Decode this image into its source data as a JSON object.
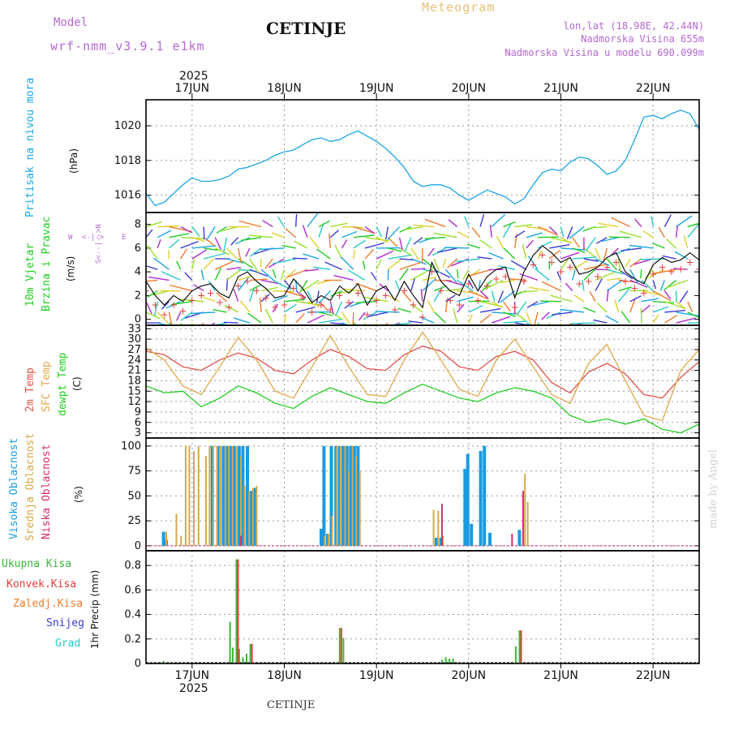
{
  "header": {
    "model_label": "Model",
    "model_name": "wrf-nmm_v3.9.1  e1km",
    "station": "CETINJE",
    "product": "Meteogram",
    "lonlat": "lon,lat (18.98E, 42.44N)",
    "elevation": "Nadmorska Visina 655m",
    "model_elevation": "Nadmorska Visina u modelu 690.099m",
    "footer_station": "CETINJE",
    "credit": "made by Angel"
  },
  "colors": {
    "pressure": "#1aa6e6",
    "temp2m": "#e0514a",
    "sfc": "#e0a84a",
    "dewpt": "#22cc22",
    "high_cloud": "#1a9be0",
    "mid_cloud": "#d4a94a",
    "low_cloud": "#d22f6a",
    "total_precip": "#38b838",
    "convective": "#e63c3c",
    "frozen": "#f07a2a",
    "snow": "#3a3ad6",
    "graupel": "#2ac8c8",
    "grid": "#999999"
  },
  "time_axis": {
    "year": "2025",
    "days": [
      "17JUN",
      "18JUN",
      "19JUN",
      "20JUN",
      "21JUN",
      "22JUN"
    ]
  },
  "chart_data": [
    {
      "type": "line",
      "title": "Pritisak na nivou mora",
      "ylabel": "(hPa)",
      "ylim": [
        1015.0,
        1021.5
      ],
      "yticks": [
        "1016",
        "1018",
        "1020"
      ],
      "grid": true,
      "series": [
        {
          "name": "Pritisak na nivou mora",
          "x": [
            16.5,
            16.6,
            16.7,
            16.8,
            16.9,
            17.0,
            17.1,
            17.2,
            17.3,
            17.4,
            17.5,
            17.6,
            17.7,
            17.8,
            17.9,
            18.0,
            18.1,
            18.2,
            18.3,
            18.4,
            18.5,
            18.6,
            18.7,
            18.8,
            18.9,
            19.0,
            19.1,
            19.2,
            19.3,
            19.4,
            19.5,
            19.6,
            19.7,
            19.8,
            19.9,
            20.0,
            20.1,
            20.2,
            20.3,
            20.4,
            20.5,
            20.6,
            20.7,
            20.8,
            20.9,
            21.0,
            21.1,
            21.2,
            21.3,
            21.4,
            21.5,
            21.6,
            21.7,
            21.8,
            21.9,
            22.0,
            22.1,
            22.2,
            22.3,
            22.4,
            22.5
          ],
          "values": [
            1016.1,
            1015.4,
            1015.6,
            1016.1,
            1016.6,
            1017.0,
            1016.8,
            1016.8,
            1016.9,
            1017.1,
            1017.5,
            1017.6,
            1017.8,
            1018.0,
            1018.3,
            1018.5,
            1018.6,
            1018.9,
            1019.2,
            1019.3,
            1019.1,
            1019.2,
            1019.5,
            1019.7,
            1019.4,
            1019.1,
            1018.7,
            1018.2,
            1017.6,
            1016.8,
            1016.5,
            1016.6,
            1016.6,
            1016.4,
            1016.0,
            1015.7,
            1016.0,
            1016.3,
            1016.1,
            1015.9,
            1015.5,
            1015.8,
            1016.6,
            1017.3,
            1017.5,
            1017.4,
            1017.9,
            1018.2,
            1018.1,
            1017.7,
            1017.2,
            1017.4,
            1018.0,
            1019.2,
            1020.5,
            1020.6,
            1020.4,
            1020.7,
            1020.9,
            1020.7,
            1019.8
          ]
        }
      ]
    },
    {
      "type": "line",
      "title": "10m Vjetar Brzina i Pravac",
      "ylabel": "(m/s)",
      "ylim": [
        -0.5,
        9.0
      ],
      "yticks": [
        "0",
        "2",
        "4",
        "6",
        "8"
      ],
      "compass": {
        "n": "N",
        "s": "S",
        "e": "E",
        "w": "W",
        "arrow": "<--|-->"
      },
      "series": [
        {
          "name": "10m Vjetar",
          "x": [
            16.5,
            16.6,
            16.7,
            16.8,
            16.9,
            17.0,
            17.1,
            17.2,
            17.3,
            17.4,
            17.5,
            17.6,
            17.7,
            17.8,
            17.9,
            18.0,
            18.1,
            18.2,
            18.3,
            18.4,
            18.5,
            18.6,
            18.7,
            18.8,
            18.9,
            19.0,
            19.1,
            19.2,
            19.3,
            19.4,
            19.5,
            19.6,
            19.7,
            19.8,
            19.9,
            20.0,
            20.1,
            20.2,
            20.3,
            20.4,
            20.5,
            20.6,
            20.7,
            20.8,
            20.9,
            21.0,
            21.1,
            21.2,
            21.3,
            21.4,
            21.5,
            21.6,
            21.7,
            21.8,
            21.9,
            22.0,
            22.1,
            22.2,
            22.3,
            22.4,
            22.5
          ],
          "values": [
            3.2,
            2.0,
            1.2,
            2.0,
            1.5,
            2.4,
            2.8,
            3.0,
            2.2,
            1.8,
            3.6,
            4.0,
            3.2,
            2.6,
            1.8,
            2.0,
            3.4,
            2.6,
            1.4,
            2.0,
            1.6,
            2.8,
            2.2,
            3.0,
            1.2,
            2.4,
            2.8,
            1.6,
            3.2,
            2.0,
            1.0,
            4.8,
            3.2,
            2.4,
            2.0,
            3.8,
            2.4,
            3.6,
            4.2,
            4.4,
            1.8,
            4.0,
            5.4,
            6.2,
            5.6,
            4.8,
            5.2,
            3.8,
            4.0,
            4.4,
            5.2,
            5.6,
            4.0,
            3.4,
            3.0,
            4.6,
            5.2,
            4.8,
            5.0,
            5.6,
            5.0
          ]
        }
      ]
    },
    {
      "type": "line",
      "title": "2m Temp / SFC Temp / dewpt Temp",
      "ylabel": "(C)",
      "ylim": [
        1.5,
        34.0
      ],
      "yticks": [
        "3",
        "6",
        "9",
        "12",
        "15",
        "18",
        "21",
        "24",
        "27",
        "30",
        "33"
      ],
      "grid": true,
      "series": [
        {
          "name": "2m Temp",
          "x": [
            16.5,
            16.7,
            16.9,
            17.1,
            17.3,
            17.5,
            17.7,
            17.9,
            18.1,
            18.3,
            18.5,
            18.7,
            18.9,
            19.1,
            19.3,
            19.5,
            19.7,
            19.9,
            20.1,
            20.3,
            20.5,
            20.7,
            20.9,
            21.1,
            21.3,
            21.5,
            21.7,
            21.9,
            22.1,
            22.3,
            22.5
          ],
          "values": [
            26.5,
            25.5,
            22.0,
            21.0,
            24.0,
            26.0,
            24.5,
            21.0,
            20.0,
            24.0,
            27.0,
            25.0,
            21.5,
            21.0,
            25.5,
            28.0,
            26.5,
            22.0,
            21.0,
            25.0,
            26.5,
            24.0,
            17.5,
            14.5,
            20.5,
            23.0,
            20.0,
            14.0,
            13.0,
            19.0,
            23.5
          ]
        },
        {
          "name": "SFC Temp",
          "x": [
            16.5,
            16.7,
            16.9,
            17.1,
            17.3,
            17.5,
            17.7,
            17.9,
            18.1,
            18.3,
            18.5,
            18.7,
            18.9,
            19.1,
            19.3,
            19.5,
            19.7,
            19.9,
            20.1,
            20.3,
            20.5,
            20.7,
            20.9,
            21.1,
            21.3,
            21.5,
            21.7,
            21.9,
            22.1,
            22.3,
            22.5
          ],
          "values": [
            27.5,
            24.0,
            16.5,
            14.0,
            22.0,
            30.5,
            24.0,
            15.0,
            13.0,
            22.0,
            31.0,
            22.0,
            14.0,
            13.5,
            24.0,
            32.0,
            24.0,
            15.5,
            13.5,
            24.0,
            30.0,
            22.0,
            14.0,
            11.5,
            23.0,
            28.5,
            18.0,
            8.0,
            6.5,
            21.0,
            27.0
          ]
        },
        {
          "name": "dewpt Temp",
          "x": [
            16.5,
            16.7,
            16.9,
            17.1,
            17.3,
            17.5,
            17.7,
            17.9,
            18.1,
            18.3,
            18.5,
            18.7,
            18.9,
            19.1,
            19.3,
            19.5,
            19.7,
            19.9,
            20.1,
            20.3,
            20.5,
            20.7,
            20.9,
            21.1,
            21.3,
            21.5,
            21.7,
            21.9,
            22.1,
            22.3,
            22.5
          ],
          "values": [
            16.5,
            14.5,
            15.0,
            10.5,
            13.0,
            16.5,
            14.5,
            11.5,
            10.0,
            13.5,
            16.0,
            14.0,
            12.0,
            11.5,
            14.5,
            17.0,
            15.0,
            13.0,
            12.0,
            14.5,
            16.0,
            15.0,
            13.0,
            8.0,
            6.0,
            7.0,
            5.5,
            7.0,
            4.0,
            3.0,
            5.5
          ]
        }
      ]
    },
    {
      "type": "bar",
      "title": "Visoka / Srednja / Niska Oblacnost",
      "ylabel": "(%)",
      "ylim": [
        -5,
        108
      ],
      "yticks": [
        "0",
        "25",
        "50",
        "75",
        "100"
      ],
      "grid": true,
      "series": [
        {
          "name": "Visoka Oblacnost",
          "x": [
            16.69,
            16.72,
            17.22,
            17.28,
            17.34,
            17.38,
            17.42,
            17.46,
            17.51,
            17.55,
            17.6,
            17.64,
            17.68,
            18.4,
            18.43,
            18.47,
            18.51,
            18.56,
            18.6,
            18.64,
            18.68,
            18.72,
            18.76,
            18.8,
            19.65,
            19.7,
            19.96,
            19.99,
            20.03,
            20.13,
            20.17,
            20.23,
            20.55
          ],
          "values": [
            14,
            6,
            100,
            100,
            100,
            100,
            100,
            100,
            100,
            100,
            100,
            55,
            58,
            17,
            100,
            12,
            100,
            100,
            100,
            100,
            100,
            100,
            100,
            100,
            8,
            8,
            77,
            92,
            22,
            95,
            100,
            13,
            16
          ]
        },
        {
          "name": "Srednja Oblacnost",
          "x": [
            16.72,
            16.83,
            16.88,
            16.93,
            16.97,
            17.02,
            17.07,
            17.15,
            17.19,
            17.23,
            17.27,
            17.31,
            17.36,
            17.4,
            17.44,
            17.48,
            17.53,
            17.57,
            17.62,
            17.66,
            17.7,
            18.44,
            18.48,
            18.52,
            18.57,
            18.61,
            18.66,
            18.7,
            18.74,
            18.78,
            18.82,
            19.62,
            19.67,
            19.72,
            20.61,
            20.64
          ],
          "values": [
            14,
            32,
            10,
            100,
            100,
            95,
            100,
            90,
            100,
            100,
            100,
            100,
            100,
            100,
            100,
            100,
            90,
            60,
            55,
            58,
            60,
            10,
            12,
            30,
            100,
            100,
            100,
            75,
            100,
            90,
            75,
            36,
            35,
            10,
            72,
            44
          ]
        },
        {
          "name": "Niska Oblacnost",
          "x": [
            17.53,
            19.71,
            20.47,
            20.59
          ],
          "values": [
            10,
            42,
            12,
            55
          ]
        }
      ]
    },
    {
      "type": "bar",
      "title": "1hr Precip",
      "ylabel": "1hr Precip (mm)",
      "ylim": [
        0,
        0.92
      ],
      "yticks": [
        "0",
        "0.2",
        "0.4",
        "0.6",
        "0.8"
      ],
      "grid": true,
      "legend": [
        "Ukupna Kisa",
        "Konvek.Kisa",
        "Zaledj.Kisa",
        "Snijeg",
        "Grad"
      ],
      "series": [
        {
          "name": "Ukupna Kisa",
          "x": [
            16.7,
            17.42,
            17.45,
            17.49,
            17.52,
            17.56,
            17.6,
            17.64,
            18.61,
            18.65,
            19.72,
            19.76,
            19.8,
            19.84,
            20.52,
            20.56
          ],
          "values": [
            0.02,
            0.34,
            0.13,
            0.85,
            0.12,
            0.05,
            0.08,
            0.16,
            0.29,
            0.21,
            0.03,
            0.05,
            0.04,
            0.04,
            0.14,
            0.27
          ]
        },
        {
          "name": "Konvek.Kisa",
          "x": [
            17.49,
            17.64,
            18.61,
            20.56
          ],
          "values": [
            0.85,
            0.16,
            0.29,
            0.27
          ]
        }
      ]
    }
  ],
  "legend_panel4": [
    "Ukupna Kisa",
    "Konvek.Kisa",
    "Zaledj.Kisa",
    "Snijeg",
    "Grad"
  ]
}
